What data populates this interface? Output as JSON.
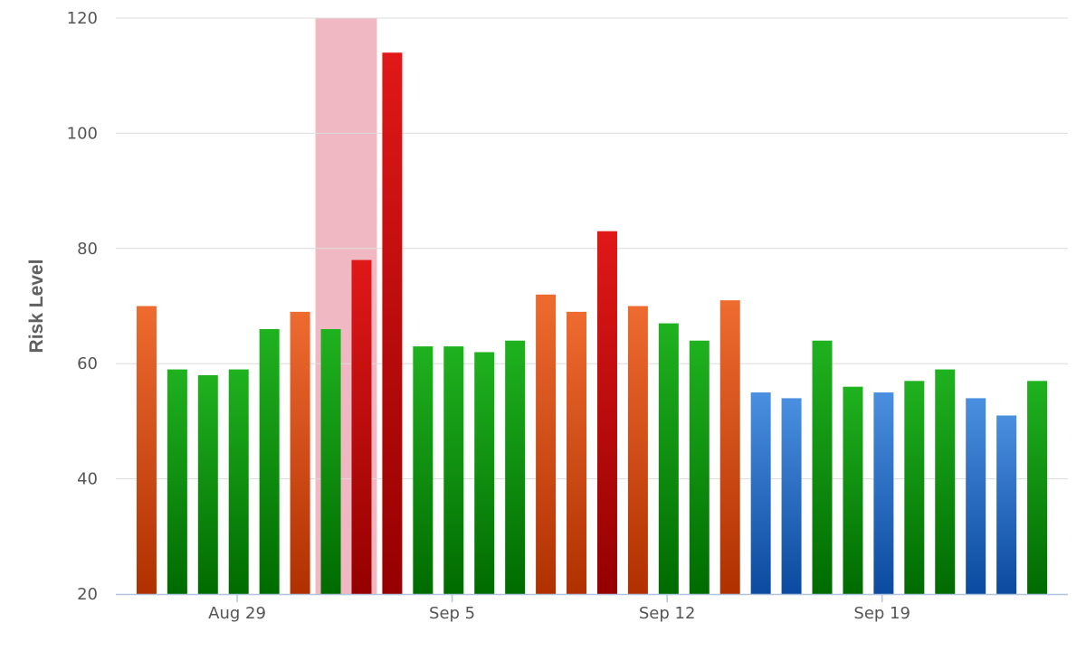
{
  "chart_data": {
    "type": "bar",
    "title": "",
    "xlabel": "",
    "ylabel": "Risk Level",
    "ylim": [
      20,
      120
    ],
    "yticks": [
      20,
      40,
      60,
      80,
      100,
      120
    ],
    "grid": true,
    "legend": "none",
    "x_tick_labels": [
      {
        "label": "Aug 29",
        "date": "Aug 29"
      },
      {
        "label": "Sep 5",
        "date": "Sep 5"
      },
      {
        "label": "Sep 12",
        "date": "Sep 12"
      },
      {
        "label": "Sep 19",
        "date": "Sep 19"
      }
    ],
    "highlight_band": {
      "from": "Sep 1",
      "to": "Sep 2",
      "color": "#f0b8c3"
    },
    "levels": {
      "low": {
        "top": "#4a8fe0",
        "bottom": "#0a4aa0"
      },
      "normal": {
        "top": "#1fb21f",
        "bottom": "#006b00"
      },
      "elevated": {
        "top": "#ee6b30",
        "bottom": "#b03000"
      },
      "high": {
        "top": "#e01818",
        "bottom": "#950000"
      }
    },
    "bars": [
      {
        "date": "Aug 26",
        "value": 70,
        "level": "elevated"
      },
      {
        "date": "Aug 27",
        "value": 59,
        "level": "normal"
      },
      {
        "date": "Aug 28",
        "value": 58,
        "level": "normal"
      },
      {
        "date": "Aug 29",
        "value": 59,
        "level": "normal"
      },
      {
        "date": "Aug 30",
        "value": 66,
        "level": "normal"
      },
      {
        "date": "Aug 31",
        "value": 69,
        "level": "elevated"
      },
      {
        "date": "Sep 1",
        "value": 66,
        "level": "normal"
      },
      {
        "date": "Sep 2",
        "value": 78,
        "level": "high"
      },
      {
        "date": "Sep 3",
        "value": 114,
        "level": "high"
      },
      {
        "date": "Sep 4",
        "value": 63,
        "level": "normal"
      },
      {
        "date": "Sep 5",
        "value": 63,
        "level": "normal"
      },
      {
        "date": "Sep 6",
        "value": 62,
        "level": "normal"
      },
      {
        "date": "Sep 7",
        "value": 64,
        "level": "normal"
      },
      {
        "date": "Sep 8",
        "value": 72,
        "level": "elevated"
      },
      {
        "date": "Sep 9",
        "value": 69,
        "level": "elevated"
      },
      {
        "date": "Sep 10",
        "value": 83,
        "level": "high"
      },
      {
        "date": "Sep 11",
        "value": 70,
        "level": "elevated"
      },
      {
        "date": "Sep 12",
        "value": 67,
        "level": "normal"
      },
      {
        "date": "Sep 13",
        "value": 64,
        "level": "normal"
      },
      {
        "date": "Sep 14",
        "value": 71,
        "level": "elevated"
      },
      {
        "date": "Sep 15",
        "value": 55,
        "level": "low"
      },
      {
        "date": "Sep 16",
        "value": 54,
        "level": "low"
      },
      {
        "date": "Sep 17",
        "value": 64,
        "level": "normal"
      },
      {
        "date": "Sep 18",
        "value": 56,
        "level": "normal"
      },
      {
        "date": "Sep 19",
        "value": 55,
        "level": "low"
      },
      {
        "date": "Sep 20",
        "value": 57,
        "level": "normal"
      },
      {
        "date": "Sep 21",
        "value": 59,
        "level": "normal"
      },
      {
        "date": "Sep 22",
        "value": 54,
        "level": "low"
      },
      {
        "date": "Sep 23",
        "value": 51,
        "level": "low"
      },
      {
        "date": "Sep 24",
        "value": 57,
        "level": "normal"
      }
    ]
  }
}
